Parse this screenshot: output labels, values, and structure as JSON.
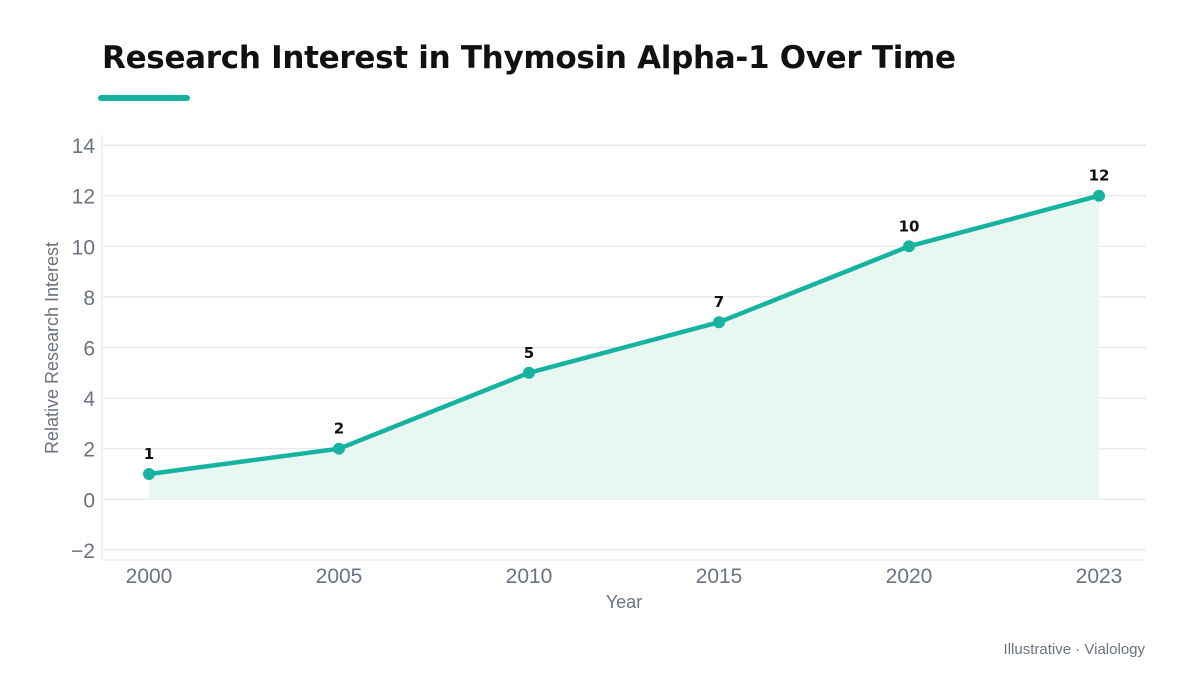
{
  "title": "Research Interest in Thymosin Alpha-1 Over Time",
  "credit": "Illustrative · Vialology",
  "colors": {
    "accent": "#17b3a0",
    "line": "#17b3a0",
    "area": "#e9f7f3",
    "grid": "#e4e7eb",
    "tick": "#6b7280",
    "label": "#111111"
  },
  "chart_data": {
    "type": "line",
    "categories": [
      "2000",
      "2005",
      "2010",
      "2015",
      "2020",
      "2023"
    ],
    "series": [
      {
        "values": [
          1,
          2,
          5,
          7,
          10,
          12
        ]
      }
    ],
    "data_labels": [
      "1",
      "2",
      "5",
      "7",
      "10",
      "12"
    ],
    "xlabel": "Year",
    "ylabel": "Relative Research Interest",
    "ylim": [
      -2.4,
      14.4
    ],
    "yticks": [
      -2,
      0,
      2,
      4,
      6,
      8,
      10,
      12,
      14
    ],
    "ytick_labels": [
      "−2",
      "0",
      "2",
      "4",
      "6",
      "8",
      "10",
      "12",
      "14"
    ],
    "grid": true,
    "area_fill": true,
    "legend": "none"
  }
}
